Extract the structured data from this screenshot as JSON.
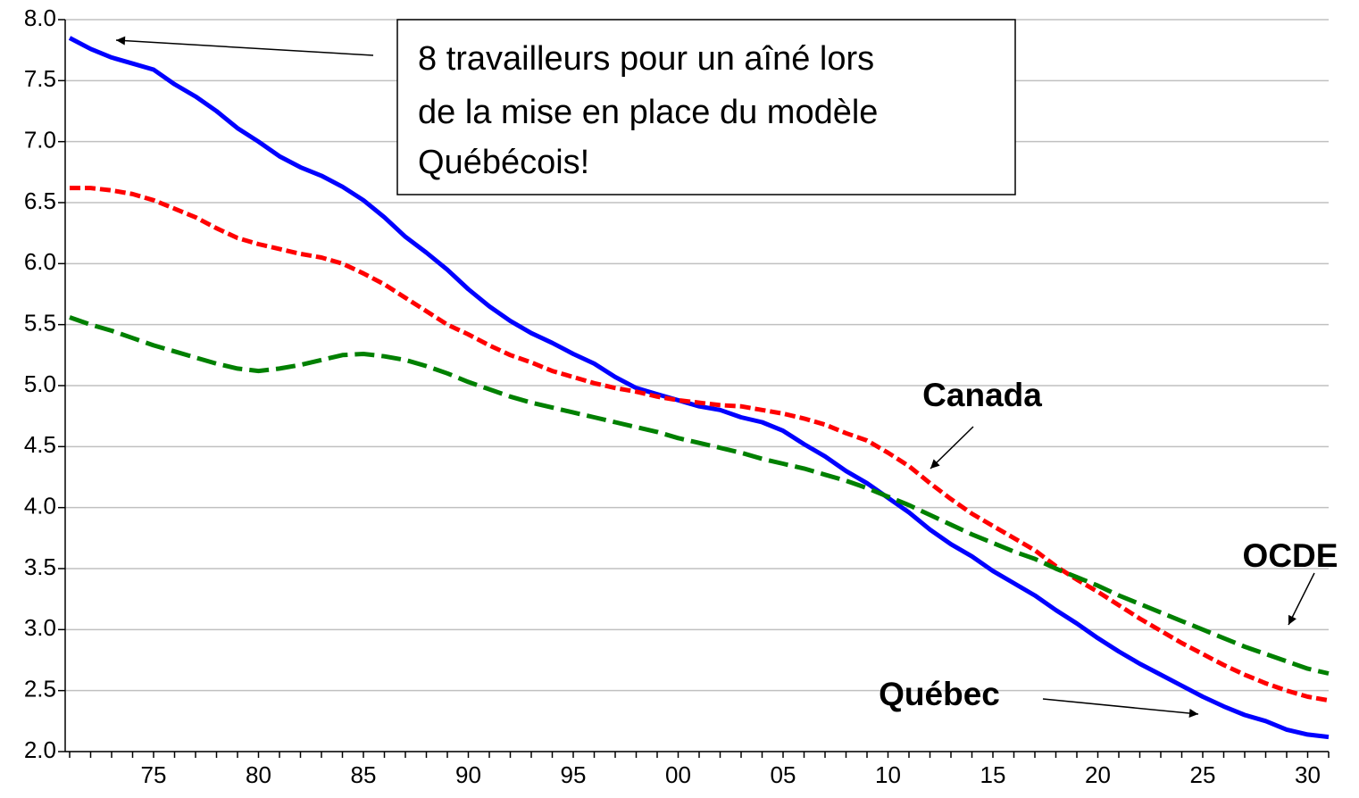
{
  "chart_data": {
    "type": "line",
    "categories": [
      null,
      null,
      null,
      null,
      "75",
      null,
      null,
      null,
      null,
      "80",
      null,
      null,
      null,
      null,
      "85",
      null,
      null,
      null,
      null,
      "90",
      null,
      null,
      null,
      null,
      "95",
      null,
      null,
      null,
      null,
      "00",
      null,
      null,
      null,
      null,
      "05",
      null,
      null,
      null,
      null,
      "10",
      null,
      null,
      null,
      null,
      "15",
      null,
      null,
      null,
      null,
      "20",
      null,
      null,
      null,
      null,
      "25",
      null,
      null,
      null,
      null,
      "30",
      null
    ],
    "series": [
      {
        "name": "Québec",
        "color": "#0000ff",
        "line_style": "solid",
        "values": [
          7.85,
          7.76,
          7.69,
          7.64,
          7.59,
          7.47,
          7.37,
          7.25,
          7.11,
          7.0,
          6.88,
          6.79,
          6.72,
          6.63,
          6.52,
          6.38,
          6.22,
          6.09,
          5.95,
          5.79,
          5.65,
          5.53,
          5.43,
          5.35,
          5.26,
          5.18,
          5.07,
          4.98,
          4.93,
          4.88,
          4.83,
          4.8,
          4.74,
          4.7,
          4.63,
          4.52,
          4.42,
          4.3,
          4.2,
          4.08,
          3.96,
          3.82,
          3.7,
          3.6,
          3.48,
          3.38,
          3.28,
          3.16,
          3.05,
          2.93,
          2.82,
          2.72,
          2.63,
          2.54,
          2.45,
          2.37,
          2.3,
          2.25,
          2.18,
          2.14,
          2.12
        ]
      },
      {
        "name": "Canada",
        "color": "#ff0000",
        "line_style": "dotted",
        "values": [
          6.62,
          6.62,
          6.6,
          6.57,
          6.52,
          6.45,
          6.38,
          6.29,
          6.21,
          6.16,
          6.12,
          6.08,
          6.05,
          6.0,
          5.92,
          5.83,
          5.72,
          5.61,
          5.5,
          5.42,
          5.33,
          5.25,
          5.19,
          5.12,
          5.07,
          5.02,
          4.98,
          4.95,
          4.91,
          4.88,
          4.86,
          4.84,
          4.83,
          4.8,
          4.77,
          4.73,
          4.68,
          4.61,
          4.55,
          4.45,
          4.34,
          4.2,
          4.07,
          3.95,
          3.85,
          3.75,
          3.65,
          3.52,
          3.41,
          3.31,
          3.2,
          3.09,
          2.99,
          2.89,
          2.8,
          2.71,
          2.63,
          2.56,
          2.5,
          2.45,
          2.42
        ]
      },
      {
        "name": "OCDE",
        "color": "#008000",
        "line_style": "dashed",
        "values": [
          5.56,
          5.5,
          5.45,
          5.39,
          5.33,
          5.28,
          5.23,
          5.18,
          5.14,
          5.12,
          5.14,
          5.17,
          5.21,
          5.25,
          5.26,
          5.24,
          5.21,
          5.16,
          5.1,
          5.03,
          4.97,
          4.91,
          4.86,
          4.82,
          4.78,
          4.74,
          4.7,
          4.66,
          4.62,
          4.57,
          4.53,
          4.49,
          4.45,
          4.4,
          4.36,
          4.32,
          4.27,
          4.22,
          4.16,
          4.09,
          4.02,
          3.94,
          3.86,
          3.78,
          3.71,
          3.64,
          3.58,
          3.5,
          3.43,
          3.36,
          3.28,
          3.21,
          3.14,
          3.07,
          3.0,
          2.93,
          2.86,
          2.8,
          2.74,
          2.68,
          2.64
        ]
      }
    ],
    "ylim": [
      2,
      8
    ],
    "yticks": [
      {
        "value": 2,
        "label": "2.0"
      },
      2.5,
      {
        "value": 3,
        "label": "3.0"
      },
      3.5,
      {
        "value": 4,
        "label": "4.0"
      },
      4.5,
      {
        "value": 5,
        "label": "5.0"
      },
      5.5,
      {
        "value": 6,
        "label": "6.0"
      },
      6.5,
      {
        "value": 7,
        "label": "7.0"
      },
      7.5,
      {
        "value": 8,
        "label": "8.0"
      }
    ],
    "grid": true,
    "annotation": [
      "8 travailleurs pour un aîné lors",
      "de la mise en place du modèle",
      "Québécois!"
    ]
  }
}
